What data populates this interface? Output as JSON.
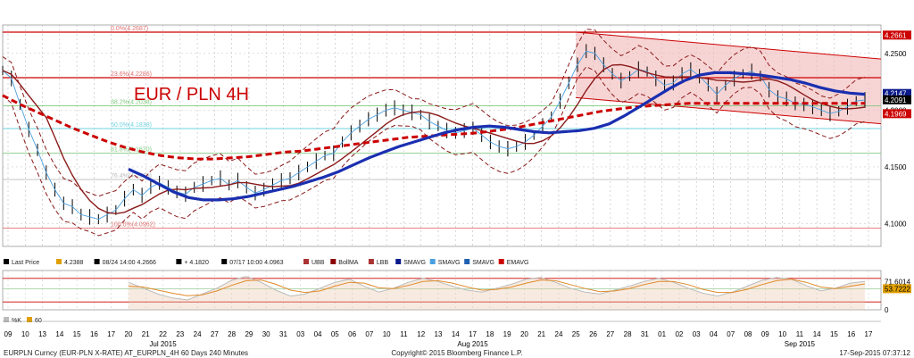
{
  "chart_data": [
    {
      "type": "line",
      "annotation_title": "EUR / PLN 4H",
      "ylim": [
        4.08,
        4.275
      ],
      "price_ticks": [
        4.25,
        4.2,
        4.15,
        4.1
      ],
      "price_tick_labels": [
        "4.2500",
        "4.2000",
        "4.1500",
        "4.1000"
      ],
      "fib_levels": [
        {
          "label": "0.0%(4.2687)",
          "value": 4.2687,
          "color": "#e07070"
        },
        {
          "label": "23.6%(4.2286)",
          "value": 4.2286,
          "color": "#e07070"
        },
        {
          "label": "38.2%(4.2038)",
          "value": 4.2038,
          "color": "#7fc97f"
        },
        {
          "label": "50.0%(4.1838)",
          "value": 4.1838,
          "color": "#6fd3e0"
        },
        {
          "label": "61.8%(4.1620)",
          "value": 4.162,
          "color": "#7fc97f"
        },
        {
          "label": "76.4%(4.1389)",
          "value": 4.1389,
          "color": "#bbbbbb"
        },
        {
          "label": "100.0%(4.0962)",
          "value": 4.0962,
          "color": "#e07070"
        }
      ],
      "horizontal_lines": [
        4.2687,
        4.2286
      ],
      "price_labels": [
        {
          "text": "4.2661",
          "value": 4.2661,
          "bg": "#cc0000",
          "fg": "#ffffff"
        },
        {
          "text": "4.2147",
          "value": 4.2147,
          "bg": "#0a1a8c",
          "fg": "#ffffff"
        },
        {
          "text": "4.2091",
          "value": 4.2091,
          "bg": "#000000",
          "fg": "#ffffff"
        },
        {
          "text": "4.1969",
          "value": 4.1969,
          "bg": "#cc0000",
          "fg": "#ffffff"
        }
      ],
      "close_series": [
        4.235,
        4.228,
        4.205,
        4.183,
        4.165,
        4.145,
        4.13,
        4.118,
        4.115,
        4.108,
        4.106,
        4.104,
        4.108,
        4.112,
        4.122,
        4.13,
        4.125,
        4.132,
        4.136,
        4.132,
        4.128,
        4.126,
        4.132,
        4.135,
        4.138,
        4.14,
        4.134,
        4.138,
        4.132,
        4.127,
        4.13,
        4.134,
        4.138,
        4.14,
        4.145,
        4.15,
        4.155,
        4.16,
        4.162,
        4.172,
        4.18,
        4.186,
        4.192,
        4.196,
        4.2,
        4.202,
        4.2,
        4.198,
        4.196,
        4.19,
        4.186,
        4.182,
        4.18,
        4.182,
        4.184,
        4.178,
        4.172,
        4.168,
        4.166,
        4.168,
        4.172,
        4.178,
        4.186,
        4.194,
        4.208,
        4.224,
        4.24,
        4.252,
        4.25,
        4.24,
        4.232,
        4.226,
        4.23,
        4.236,
        4.234,
        4.228,
        4.222,
        4.224,
        4.232,
        4.236,
        4.23,
        4.222,
        4.214,
        4.222,
        4.228,
        4.232,
        4.234,
        4.23,
        4.218,
        4.212,
        4.21,
        4.206,
        4.205,
        4.203,
        4.2,
        4.197,
        4.199,
        4.203,
        4.208,
        4.209
      ],
      "ma_blue_series": [
        4.148,
        4.142,
        4.135,
        4.128,
        4.123,
        4.121,
        4.121,
        4.122,
        4.124,
        4.127,
        4.13,
        4.133,
        4.137,
        4.141,
        4.146,
        4.152,
        4.158,
        4.163,
        4.168,
        4.172,
        4.176,
        4.18,
        4.183,
        4.185,
        4.186,
        4.185,
        4.183,
        4.181,
        4.18,
        4.181,
        4.182,
        4.184,
        4.188,
        4.195,
        4.203,
        4.211,
        4.219,
        4.226,
        4.231,
        4.233,
        4.233,
        4.232,
        4.231,
        4.229,
        4.227,
        4.224,
        4.22,
        4.217,
        4.215,
        4.214
      ],
      "ema_red_series": [
        4.213,
        4.205,
        4.198,
        4.191,
        4.184,
        4.178,
        4.172,
        4.167,
        4.163,
        4.16,
        4.158,
        4.157,
        4.157,
        4.158,
        4.159,
        4.161,
        4.163,
        4.164,
        4.166,
        4.168,
        4.17,
        4.172,
        4.174,
        4.176,
        4.177,
        4.178,
        4.179,
        4.18,
        4.182,
        4.184,
        4.187,
        4.19,
        4.193,
        4.196,
        4.199,
        4.201,
        4.203,
        4.204,
        4.205,
        4.206,
        4.206,
        4.206,
        4.206,
        4.206,
        4.206,
        4.206,
        4.206,
        4.206,
        4.206,
        4.206
      ],
      "x_tick_labels": [
        "09",
        "10",
        "13",
        "14",
        "15",
        "16",
        "17",
        "20",
        "21",
        "22",
        "23",
        "24",
        "27",
        "28",
        "29",
        "30",
        "31",
        "03",
        "04",
        "05",
        "06",
        "07",
        "10",
        "11",
        "12",
        "13",
        "14",
        "17",
        "18",
        "19",
        "20",
        "21",
        "24",
        "25",
        "26",
        "27",
        "28",
        "31",
        "01",
        "02",
        "03",
        "04",
        "07",
        "08",
        "09",
        "10",
        "11",
        "14",
        "15",
        "16",
        "17"
      ],
      "month_labels": [
        {
          "text": "Jul 2015",
          "index": 9
        },
        {
          "text": "Aug 2015",
          "index": 27
        },
        {
          "text": "Sep 2015",
          "index": 46
        }
      ]
    },
    {
      "type": "line",
      "ylim": [
        0,
        100
      ],
      "ticks": [
        80,
        20
      ],
      "value_labels": [
        {
          "text": "71.6014",
          "value": 71.6014,
          "bg": "#ffffff",
          "fg": "#000000"
        },
        {
          "text": "53.7222",
          "value": 53.7222,
          "bg": "#e0a000",
          "fg": "#000000"
        },
        {
          "text": "0",
          "value": 0,
          "bg": "#ffffff",
          "fg": "#000000"
        }
      ],
      "k_series": [
        70,
        55,
        40,
        30,
        25,
        40,
        55,
        75,
        85,
        70,
        50,
        35,
        40,
        55,
        70,
        78,
        60,
        45,
        55,
        70,
        80,
        72,
        60,
        50,
        45,
        55,
        65,
        78,
        82,
        70,
        55,
        45,
        40,
        50,
        60,
        72,
        80,
        70,
        55,
        42,
        35,
        45,
        60,
        75,
        82,
        78,
        62,
        48,
        55,
        68,
        72
      ],
      "d_series": [
        60,
        58,
        50,
        42,
        36,
        38,
        48,
        62,
        74,
        76,
        65,
        50,
        44,
        48,
        60,
        70,
        68,
        56,
        54,
        62,
        72,
        74,
        68,
        58,
        50,
        52,
        58,
        68,
        76,
        74,
        64,
        54,
        46,
        48,
        54,
        64,
        72,
        72,
        64,
        52,
        44,
        44,
        52,
        64,
        74,
        78,
        70,
        58,
        54,
        60,
        66
      ]
    }
  ],
  "legend": {
    "items": [
      {
        "label": "Last Price",
        "color": "#000000"
      },
      {
        "label": "4.2388",
        "color": "#e0a000"
      },
      {
        "label": "08/24 14:00 4.2666",
        "color": "#000000"
      },
      {
        "label": "+ 4.1820",
        "color": "#000000"
      },
      {
        "label": "07/17 10:00 4.0963",
        "color": "#000000"
      },
      {
        "label": "UBB",
        "color": "#a33"
      },
      {
        "label": "BollMA",
        "color": "#8b0000"
      },
      {
        "label": "LBB",
        "color": "#a33"
      },
      {
        "label": "SMAVG",
        "color": "#0a1a8c"
      },
      {
        "label": "SMAVG",
        "color": "#4aa0e0"
      },
      {
        "label": "SMAVG",
        "color": "#2060b0"
      },
      {
        "label": "EMAVG",
        "color": "#cc0000"
      }
    ],
    "sub_items": [
      {
        "label": "%K",
        "color": "#bbbbbb"
      },
      {
        "label": "60",
        "color": "#e0a000"
      }
    ]
  },
  "footer": {
    "left": "EURPLN Curncy (EUR-PLN X-RATE) AT_EURPLN_4H 60 Days 240 Minutes",
    "center": "Copyright© 2015 Bloomberg Finance L.P.",
    "right": "17-Sep-2015 07:37:12"
  },
  "colors": {
    "channel_fill": "#f2b8b8",
    "channel_line": "#cc0000",
    "blue_ma": "#1a2fb0",
    "red_ema": "#cc0000",
    "boll": "#8b1a1a",
    "stoch_orange": "#e08a2a"
  }
}
